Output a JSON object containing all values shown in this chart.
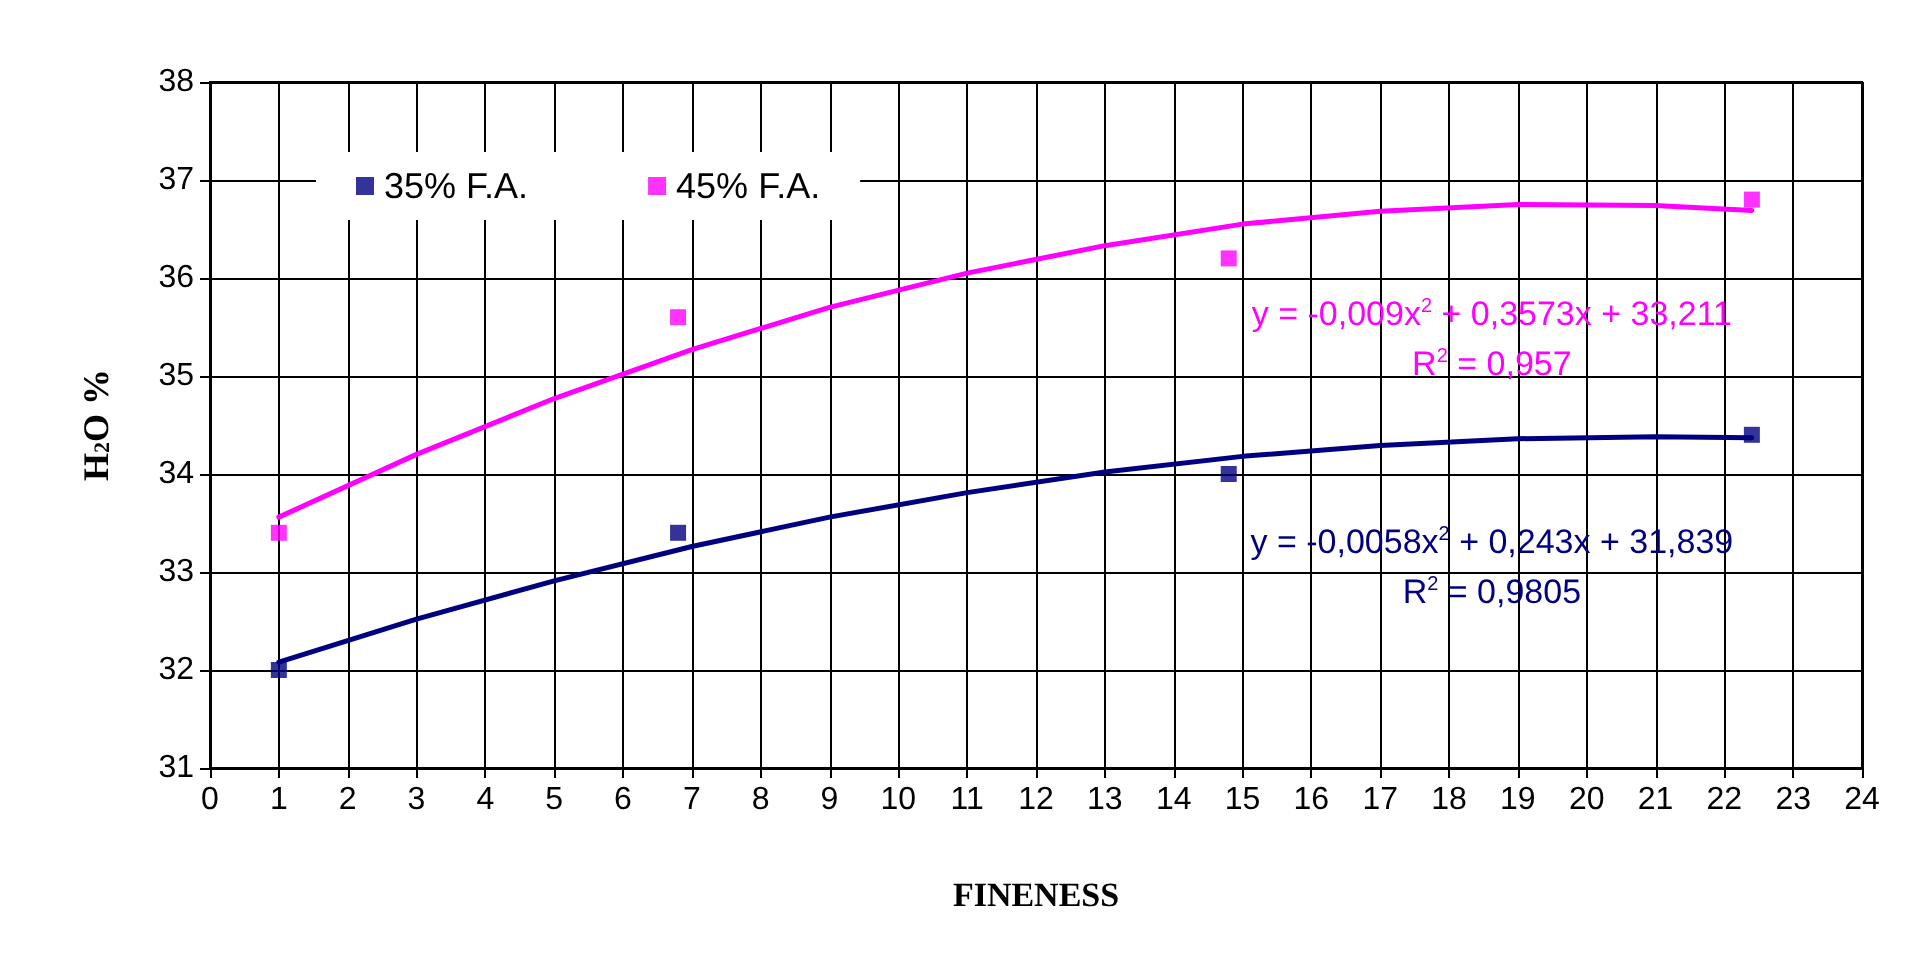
{
  "chart_data": {
    "type": "scatter",
    "xlabel": "FINENESS",
    "ylabel": "H$_{2}$O %",
    "xlim": [
      0,
      24
    ],
    "xticks": [
      0,
      1,
      2,
      3,
      4,
      5,
      6,
      7,
      8,
      9,
      10,
      11,
      12,
      13,
      14,
      15,
      16,
      17,
      18,
      19,
      20,
      21,
      22,
      23,
      24
    ],
    "ylim": [
      31,
      38
    ],
    "yticks": [
      31,
      32,
      33,
      34,
      35,
      36,
      37,
      38
    ],
    "grid": true,
    "legend": "top left",
    "marker": "square",
    "series": [
      {
        "name": "35% F.A.",
        "color": "#000080",
        "x": [
          1,
          6.8,
          14.8,
          22.4
        ],
        "values": [
          32.0,
          33.4,
          34.0,
          34.4
        ]
      },
      {
        "name": "45% F.A.",
        "color": "#ff00ff",
        "x": [
          1,
          6.8,
          14.8,
          22.4
        ],
        "values": [
          33.4,
          35.6,
          36.2,
          36.8
        ]
      },
      {
        "type": "line",
        "marker": "none",
        "color": "#000080",
        "x": [
          1,
          3,
          5,
          7,
          9,
          11,
          13,
          15,
          17,
          19,
          21,
          22.4
        ],
        "values": [
          32.08,
          32.52,
          32.91,
          33.26,
          33.56,
          33.81,
          34.02,
          34.18,
          34.29,
          34.36,
          34.38,
          34.37
        ]
      },
      {
        "type": "line",
        "marker": "none",
        "color": "#ff00ff",
        "x": [
          1,
          3,
          5,
          7,
          9,
          11,
          13,
          15,
          17,
          19,
          21,
          22.4
        ],
        "values": [
          33.56,
          34.2,
          34.77,
          35.27,
          35.7,
          36.05,
          36.33,
          36.55,
          36.68,
          36.75,
          36.74,
          36.69
        ]
      }
    ],
    "annotations": [
      "y = -0,0058x$^{2}$ + 0,243x + 31,839",
      "R$^{2}$ = 0,9805",
      "y = -0,009x$^{2}$ + 0,3573x + 33,211",
      "R$^{2}$ = 0,957"
    ]
  }
}
